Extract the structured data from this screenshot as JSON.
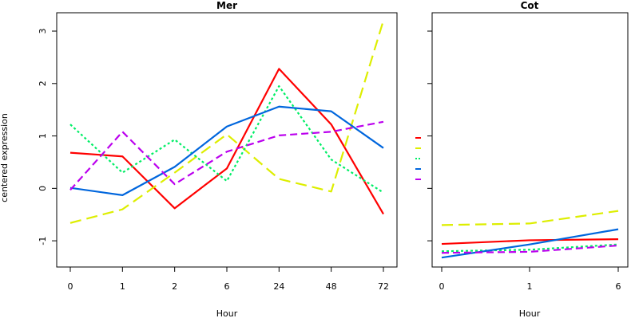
{
  "ylabel": "centered expression",
  "y_ticks": [
    -1,
    0,
    1,
    2,
    3
  ],
  "series_styles": [
    {
      "color": "#ff0000",
      "dash": "none"
    },
    {
      "color": "#ddee00",
      "dash": "long"
    },
    {
      "color": "#00ee66",
      "dash": "dotted"
    },
    {
      "color": "#0066dd",
      "dash": "none"
    },
    {
      "color": "#bb00ee",
      "dash": "dashed"
    }
  ],
  "chart_data": [
    {
      "type": "line",
      "title": "Mer",
      "xlabel": "Hour",
      "ylabel": "centered expression",
      "categories": [
        "0",
        "1",
        "2",
        "6",
        "24",
        "48",
        "72"
      ],
      "ylim": [
        -1.5,
        3.35
      ],
      "series": [
        {
          "values": [
            0.68,
            0.61,
            -0.38,
            0.38,
            2.28,
            1.22,
            -0.49
          ]
        },
        {
          "values": [
            -0.66,
            -0.4,
            0.3,
            1.03,
            0.18,
            -0.06,
            3.2
          ]
        },
        {
          "values": [
            1.22,
            0.3,
            0.93,
            0.14,
            1.95,
            0.55,
            -0.08
          ]
        },
        {
          "values": [
            0.01,
            -0.13,
            0.41,
            1.18,
            1.56,
            1.47,
            0.77
          ]
        },
        {
          "values": [
            -0.03,
            1.08,
            0.08,
            0.7,
            1.01,
            1.08,
            1.27
          ]
        }
      ]
    },
    {
      "type": "line",
      "title": "Cot",
      "xlabel": "Hour",
      "categories": [
        "0",
        "1",
        "6"
      ],
      "ylim": [
        -1.5,
        3.35
      ],
      "series": [
        {
          "values": [
            -1.06,
            -0.99,
            -0.97
          ]
        },
        {
          "values": [
            -0.7,
            -0.67,
            -0.43
          ]
        },
        {
          "values": [
            -1.2,
            -1.17,
            -1.07
          ]
        },
        {
          "values": [
            -1.32,
            -1.07,
            -0.78
          ]
        },
        {
          "values": [
            -1.23,
            -1.21,
            -1.09
          ]
        }
      ]
    }
  ]
}
